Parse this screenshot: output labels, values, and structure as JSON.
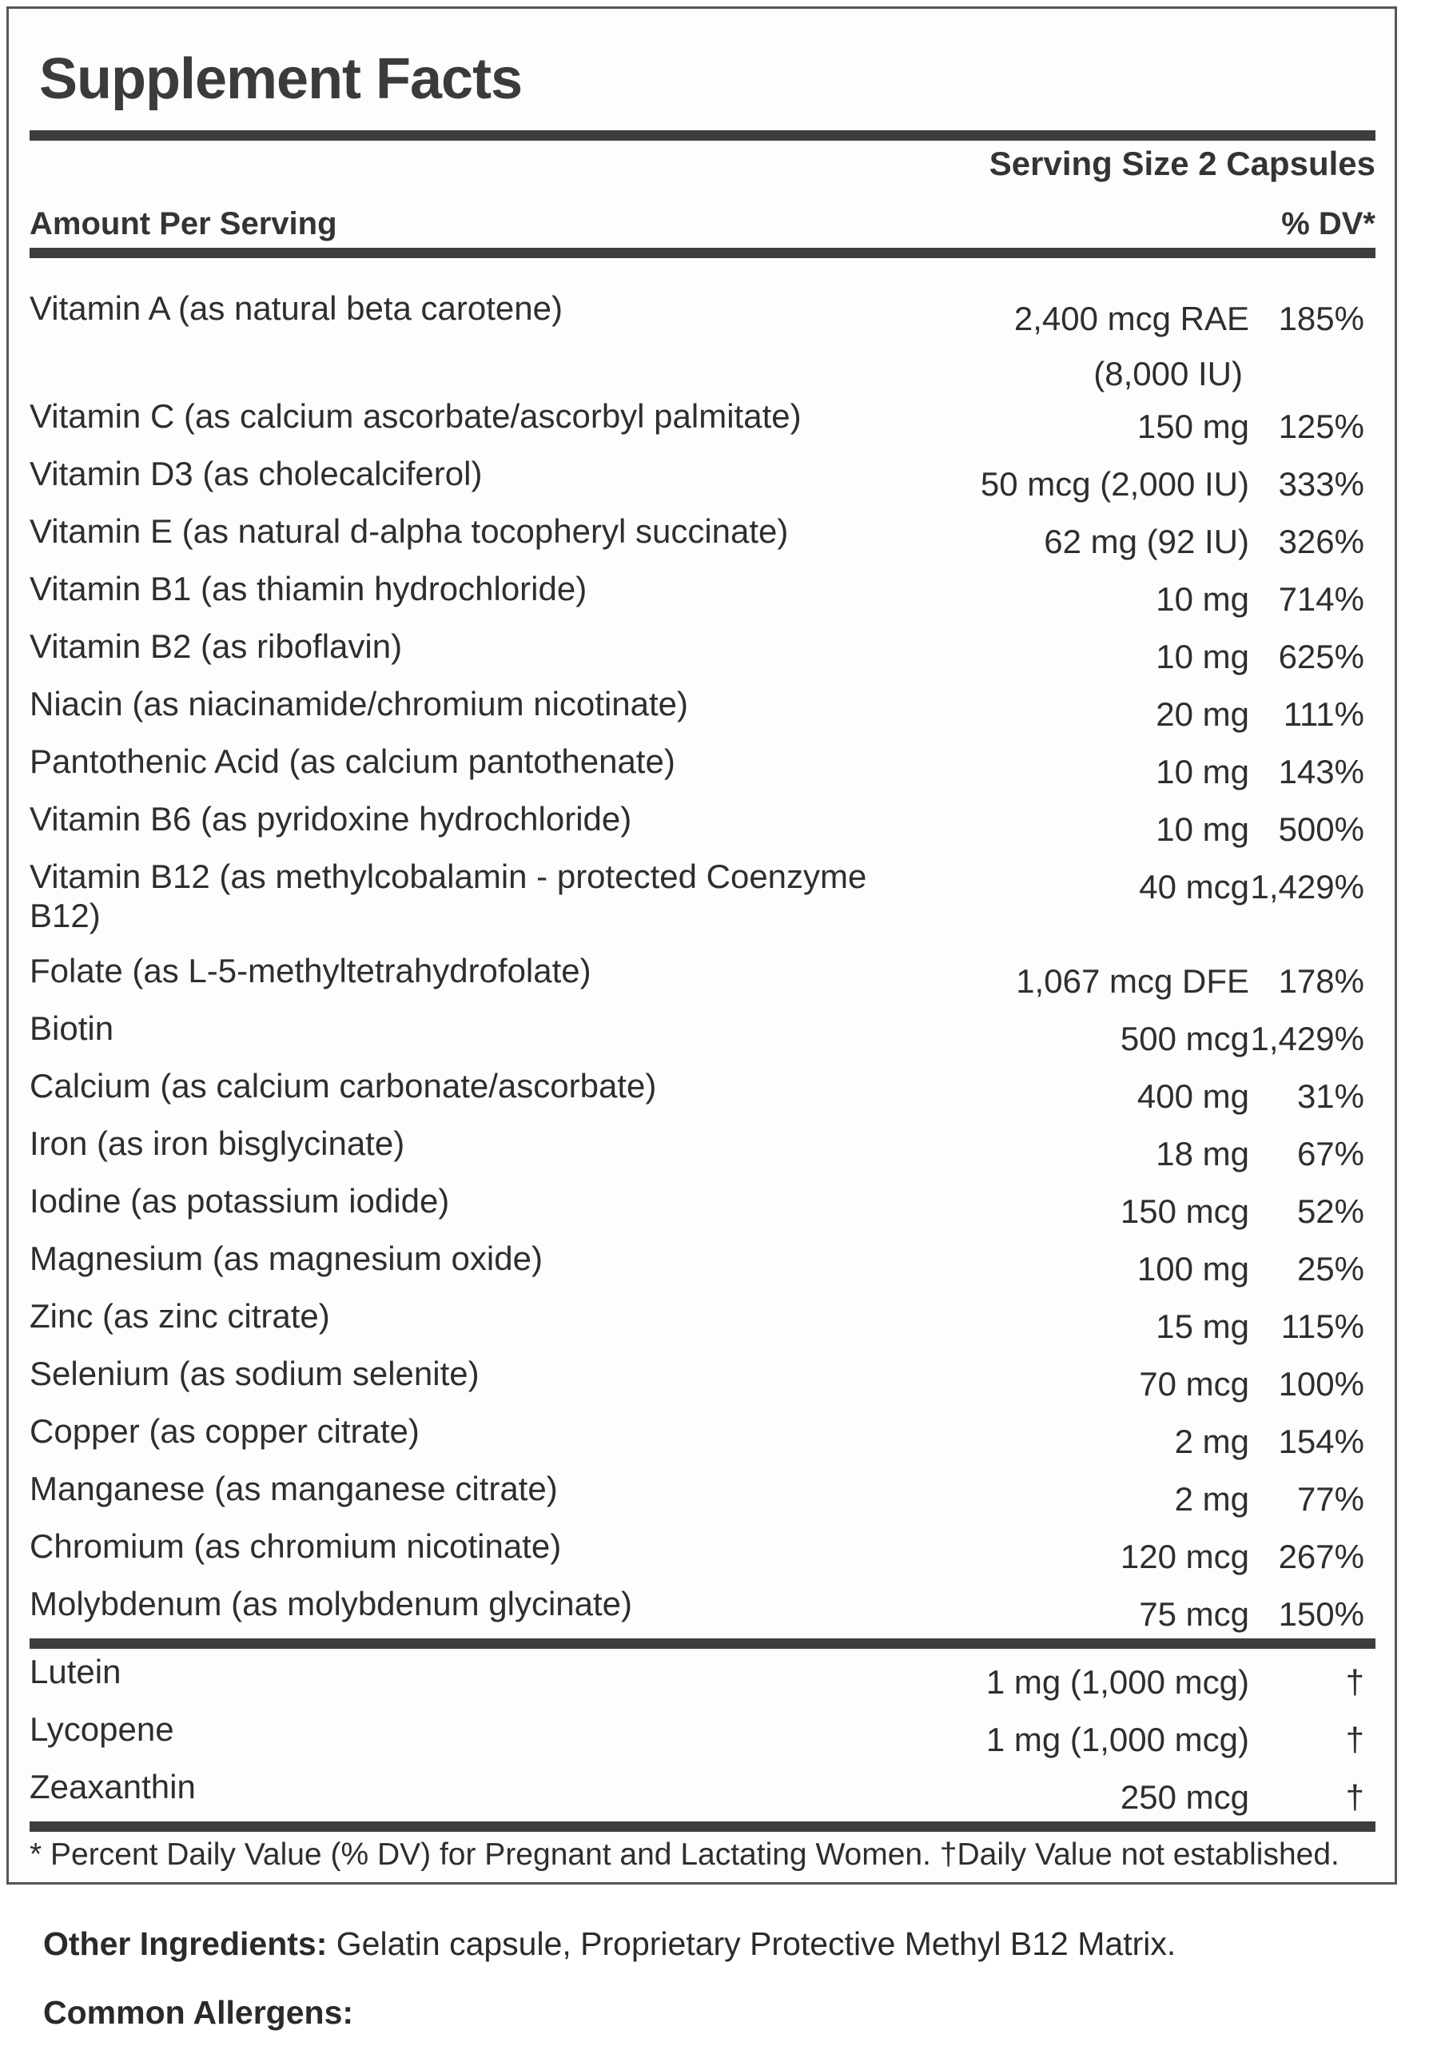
{
  "label": {
    "title": "Supplement Facts",
    "serving_size": "Serving Size 2 Capsules",
    "columns": {
      "amount_header": "Amount Per Serving",
      "dv_header": "% DV*"
    },
    "rows": [
      {
        "name": "Vitamin A (as natural beta carotene)",
        "amount": "2,400 mcg RAE",
        "amount2": "(8,000 IU)",
        "dv": "185%"
      },
      {
        "name": "Vitamin C (as calcium ascorbate/ascorbyl palmitate)",
        "amount": "150 mg",
        "dv": "125%"
      },
      {
        "name": "Vitamin D3 (as cholecalciferol)",
        "amount": "50 mcg (2,000 IU)",
        "dv": "333%"
      },
      {
        "name": "Vitamin E (as natural d-alpha tocopheryl succinate)",
        "amount": "62 mg (92 IU)",
        "dv": "326%"
      },
      {
        "name": "Vitamin B1 (as thiamin hydrochloride)",
        "amount": "10 mg",
        "dv": "714%"
      },
      {
        "name": "Vitamin B2 (as riboflavin)",
        "amount": "10 mg",
        "dv": "625%"
      },
      {
        "name": "Niacin (as niacinamide/chromium nicotinate)",
        "amount": "20 mg",
        "dv": "111%"
      },
      {
        "name": "Pantothenic Acid (as calcium pantothenate)",
        "amount": "10 mg",
        "dv": "143%"
      },
      {
        "name": "Vitamin B6 (as pyridoxine hydrochloride)",
        "amount": "10 mg",
        "dv": "500%"
      },
      {
        "name": "Vitamin B12 (as methylcobalamin - protected Coenzyme B12)",
        "amount": "40 mcg",
        "dv": "1,429%",
        "wrap": true
      },
      {
        "name": "Folate (as L-5-methyltetrahydrofolate)",
        "amount": "1,067 mcg DFE",
        "dv": "178%"
      },
      {
        "name": "Biotin",
        "amount": "500 mcg",
        "dv": "1,429%"
      },
      {
        "name": "Calcium (as calcium carbonate/ascorbate)",
        "amount": "400 mg",
        "dv": "31%"
      },
      {
        "name": "Iron (as iron bisglycinate)",
        "amount": "18 mg",
        "dv": "67%"
      },
      {
        "name": "Iodine (as potassium iodide)",
        "amount": "150 mcg",
        "dv": "52%"
      },
      {
        "name": "Magnesium (as magnesium oxide)",
        "amount": "100 mg",
        "dv": "25%"
      },
      {
        "name": "Zinc (as zinc citrate)",
        "amount": "15 mg",
        "dv": "115%"
      },
      {
        "name": "Selenium (as sodium selenite)",
        "amount": "70 mcg",
        "dv": "100%"
      },
      {
        "name": "Copper (as copper citrate)",
        "amount": "2 mg",
        "dv": "154%"
      },
      {
        "name": "Manganese (as manganese citrate)",
        "amount": "2 mg",
        "dv": "77%"
      },
      {
        "name": "Chromium (as chromium nicotinate)",
        "amount": "120 mcg",
        "dv": "267%"
      },
      {
        "name": "Molybdenum (as molybdenum glycinate)",
        "amount": "75 mcg",
        "dv": "150%"
      }
    ],
    "extra_rows": [
      {
        "name": "Lutein",
        "amount": "1 mg (1,000 mcg)",
        "dv": "†"
      },
      {
        "name": "Lycopene",
        "amount": "1 mg (1,000 mcg)",
        "dv": "†"
      },
      {
        "name": "Zeaxanthin",
        "amount": "250 mcg",
        "dv": "†"
      }
    ],
    "footnote": "* Percent Daily Value (% DV) for Pregnant and Lactating Women. †Daily Value not established.",
    "colors": {
      "text": "#2e2e2e",
      "bar": "#3d3d3d",
      "border": "#565656",
      "background": "#fdfdfd"
    }
  },
  "below": {
    "other_ingredients_label": "Other Ingredients:",
    "other_ingredients_text": " Gelatin capsule, Proprietary Protective Methyl B12 Matrix.",
    "allergens_label": "Common Allergens:"
  }
}
